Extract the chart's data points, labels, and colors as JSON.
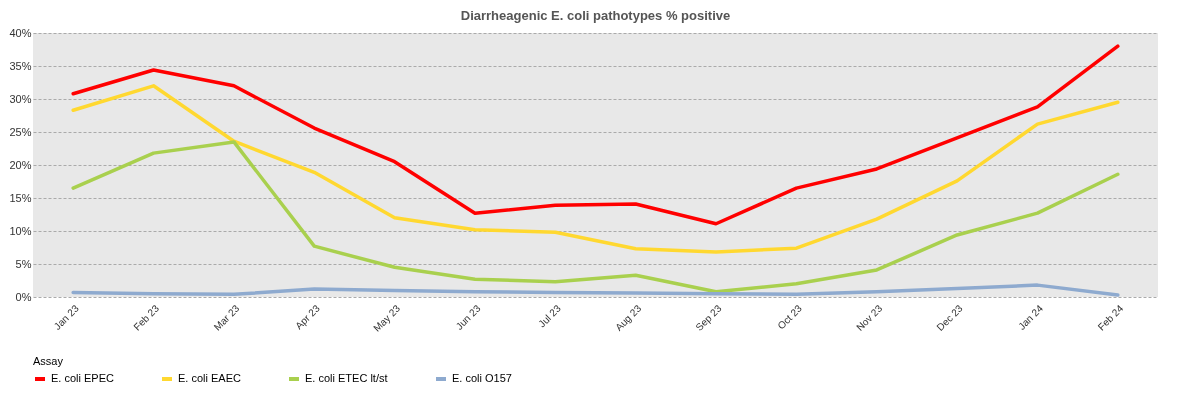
{
  "chart_data": {
    "type": "line",
    "title": "Diarrheagenic E. coli pathotypes % positive",
    "legend_title": "Assay",
    "categories": [
      "Jan 23",
      "Feb 23",
      "Mar 23",
      "Apr 23",
      "May 23",
      "Jun 23",
      "Jul 23",
      "Aug 23",
      "Sep 23",
      "Oct 23",
      "Nov 23",
      "Dec 23",
      "Jan 24",
      "Feb 24"
    ],
    "series": [
      {
        "name": "E. coli EPEC",
        "color": "#ff0000",
        "values": [
          30.8,
          34.4,
          32.0,
          25.6,
          20.5,
          12.7,
          13.9,
          14.1,
          11.1,
          16.5,
          19.4,
          24.1,
          28.8,
          38.0
        ]
      },
      {
        "name": "E. coli EAEC",
        "color": "#ffd830",
        "values": [
          28.3,
          32.0,
          23.6,
          18.9,
          12.0,
          10.2,
          9.8,
          7.3,
          6.8,
          7.4,
          11.8,
          17.6,
          26.2,
          29.5
        ]
      },
      {
        "name": "E. coli ETEC lt/st",
        "color": "#a9d04e",
        "values": [
          16.5,
          21.8,
          23.5,
          7.7,
          4.5,
          2.7,
          2.3,
          3.3,
          0.8,
          2.0,
          4.1,
          9.4,
          12.7,
          18.6
        ]
      },
      {
        "name": "E. coli O157",
        "color": "#8eaacf",
        "values": [
          0.7,
          0.5,
          0.4,
          1.2,
          1.0,
          0.8,
          0.7,
          0.6,
          0.5,
          0.4,
          0.8,
          1.3,
          1.8,
          0.3
        ]
      }
    ],
    "ylim": [
      0,
      40
    ],
    "yticks": [
      {
        "value": 0,
        "label": "0%"
      },
      {
        "value": 5,
        "label": "5%"
      },
      {
        "value": 10,
        "label": "10%"
      },
      {
        "value": 15,
        "label": "15%"
      },
      {
        "value": 20,
        "label": "20%"
      },
      {
        "value": 25,
        "label": "25%"
      },
      {
        "value": 30,
        "label": "30%"
      },
      {
        "value": 35,
        "label": "35%"
      },
      {
        "value": 40,
        "label": "40%"
      }
    ],
    "grid": "y",
    "legend": "bottom",
    "marker": "none",
    "line_style": "solid"
  }
}
